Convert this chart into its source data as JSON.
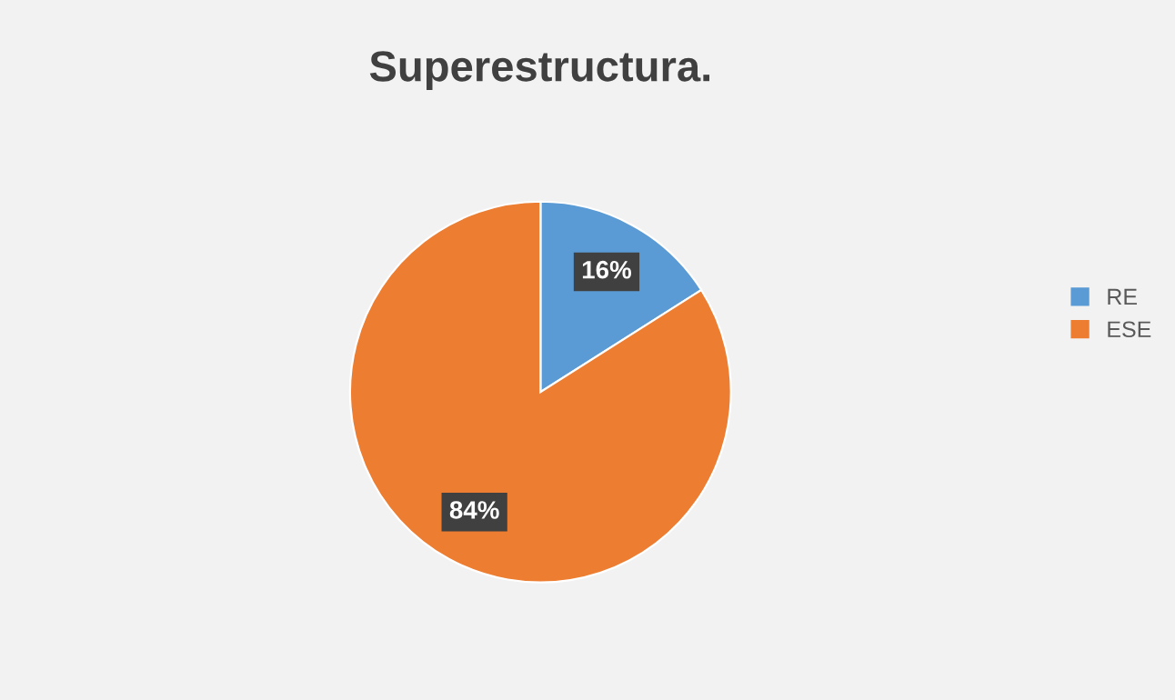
{
  "chart_data": {
    "type": "pie",
    "title": "Superestructura.",
    "categories": [
      "RE",
      "ESE"
    ],
    "values": [
      16,
      84
    ],
    "colors": [
      "#5b9bd5",
      "#ed7d31"
    ],
    "value_labels": [
      "16%",
      "84%"
    ],
    "legend": "right"
  }
}
